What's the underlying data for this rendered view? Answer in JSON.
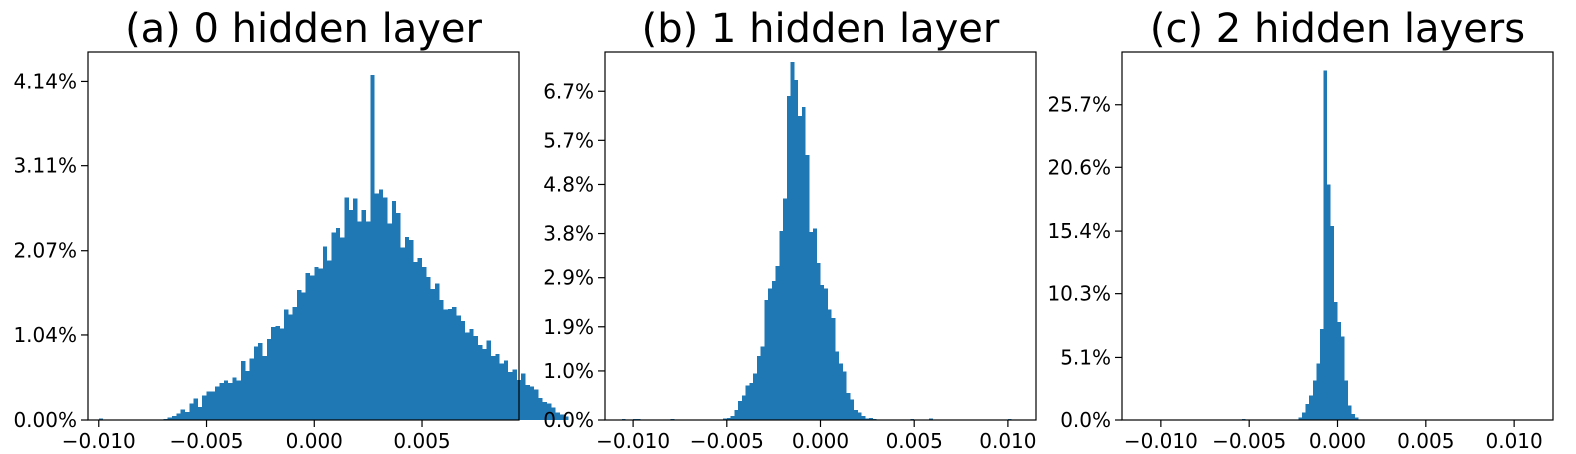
{
  "chart_data": [
    {
      "type": "bar",
      "title": "(a) 0 hidden layer",
      "xlabel": "",
      "ylabel": "",
      "color": "#1f77b4",
      "grid": false,
      "xlim": [
        -0.0105,
        0.0095
      ],
      "ylim": [
        0.0,
        4.5
      ],
      "x_ticks": [
        -0.01,
        -0.005,
        0.0,
        0.005
      ],
      "x_tick_labels": [
        "−0.010",
        "−0.005",
        "0.000",
        "0.005"
      ],
      "y_ticks": [
        0.0,
        1.04,
        2.07,
        3.11,
        4.14
      ],
      "y_tick_labels": [
        "0.00%",
        "1.04%",
        "2.07%",
        "3.11%",
        "4.14%"
      ],
      "bin_width": 0.0002,
      "bin_start": -0.0102,
      "values": [
        0.0,
        0.02,
        0.0,
        0.0,
        0.0,
        0.0,
        0.0,
        0.0,
        0.0,
        0.0,
        0.0,
        0.0,
        0.0,
        0.0,
        0.0,
        0.0,
        0.01,
        0.03,
        0.05,
        0.08,
        0.13,
        0.1,
        0.2,
        0.26,
        0.16,
        0.3,
        0.35,
        0.35,
        0.41,
        0.45,
        0.48,
        0.45,
        0.52,
        0.48,
        0.72,
        0.6,
        0.75,
        0.9,
        0.94,
        0.78,
        0.99,
        1.14,
        1.15,
        1.12,
        1.35,
        1.29,
        1.38,
        1.59,
        1.56,
        1.8,
        1.77,
        1.87,
        1.85,
        2.12,
        1.95,
        2.29,
        2.35,
        2.23,
        2.72,
        2.57,
        2.71,
        2.43,
        2.57,
        2.43,
        4.22,
        2.77,
        2.82,
        2.72,
        2.4,
        2.68,
        2.53,
        2.11,
        2.24,
        2.2,
        1.93,
        1.98,
        1.87,
        1.75,
        1.6,
        1.67,
        1.47,
        1.35,
        1.36,
        1.38,
        1.28,
        1.21,
        1.07,
        1.11,
        1.03,
        0.92,
        0.87,
        0.97,
        0.78,
        0.81,
        0.69,
        0.73,
        0.59,
        0.62,
        0.49,
        0.57,
        0.43,
        0.41,
        0.37,
        0.27,
        0.22,
        0.2,
        0.15,
        0.09,
        0.07,
        0.04,
        0.0
      ]
    },
    {
      "type": "bar",
      "title": "(b) 1 hidden layer",
      "xlabel": "",
      "ylabel": "",
      "color": "#1f77b4",
      "grid": false,
      "xlim": [
        -0.0115,
        0.0115
      ],
      "ylim": [
        0.0,
        7.5
      ],
      "x_ticks": [
        -0.01,
        -0.005,
        0.0,
        0.005,
        0.01
      ],
      "x_tick_labels": [
        "−0.010",
        "−0.005",
        "0.000",
        "0.005",
        "0.010"
      ],
      "y_ticks": [
        0.0,
        1.0,
        1.9,
        2.9,
        3.8,
        4.8,
        5.7,
        6.7
      ],
      "y_tick_labels": [
        "0.0%",
        "1.0%",
        "1.9%",
        "2.9%",
        "3.8%",
        "4.8%",
        "5.7%",
        "6.7%"
      ],
      "bin_width": 0.0002,
      "bin_start": -0.011,
      "values": [
        0.0,
        0.0,
        0.02,
        0.0,
        0.0,
        0.02,
        0.02,
        0.0,
        0.0,
        0.0,
        0.0,
        0.0,
        0.0,
        0.0,
        0.0,
        0.02,
        0.0,
        0.0,
        0.0,
        0.0,
        0.0,
        0.0,
        0.0,
        0.0,
        0.0,
        0.0,
        0.0,
        0.0,
        0.0,
        0.03,
        0.04,
        0.08,
        0.2,
        0.39,
        0.5,
        0.7,
        0.75,
        0.95,
        1.3,
        1.5,
        2.45,
        2.68,
        2.83,
        3.14,
        3.85,
        4.51,
        6.6,
        7.3,
        6.93,
        6.2,
        6.38,
        5.4,
        3.83,
        3.9,
        3.2,
        2.75,
        2.68,
        2.25,
        2.08,
        1.4,
        1.15,
        0.99,
        0.55,
        0.42,
        0.2,
        0.15,
        0.08,
        0.03,
        0.04,
        0.02,
        0.0,
        0.0,
        0.0,
        0.0,
        0.0,
        0.0,
        0.0,
        0.0,
        0.0,
        0.02,
        0.0,
        0.0,
        0.0,
        0.0,
        0.03,
        0.0,
        0.0,
        0.0,
        0.0,
        0.0,
        0.0,
        0.0,
        0.0,
        0.0,
        0.0,
        0.0,
        0.0,
        0.0,
        0.0,
        0.0,
        0.0,
        0.0,
        0.0,
        0.0,
        0.0,
        0.02,
        0.0,
        0.0,
        0.0,
        0.0
      ]
    },
    {
      "type": "bar",
      "title": "(c) 2 hidden layers",
      "xlabel": "",
      "ylabel": "",
      "color": "#1f77b4",
      "grid": false,
      "xlim": [
        -0.0122,
        0.0122
      ],
      "ylim": [
        0.0,
        30.0
      ],
      "x_ticks": [
        -0.01,
        -0.005,
        0.0,
        0.005,
        0.01
      ],
      "x_tick_labels": [
        "−0.010",
        "−0.005",
        "0.000",
        "0.005",
        "0.010"
      ],
      "y_ticks": [
        0.0,
        5.1,
        10.3,
        15.4,
        20.6,
        25.7
      ],
      "y_tick_labels": [
        "0.0%",
        "5.1%",
        "10.3%",
        "15.4%",
        "20.6%",
        "25.7%"
      ],
      "bin_width": 0.0002,
      "bin_start": -0.011,
      "values": [
        0.0,
        0.0,
        0.05,
        0.0,
        0.0,
        0.0,
        0.0,
        0.0,
        0.0,
        0.0,
        0.0,
        0.0,
        0.0,
        0.0,
        0.0,
        0.0,
        0.0,
        0.0,
        0.0,
        0.0,
        0.0,
        0.0,
        0.0,
        0.0,
        0.0,
        0.0,
        0.0,
        0.0,
        0.1,
        0.0,
        0.0,
        0.0,
        0.0,
        0.0,
        0.0,
        0.0,
        0.0,
        0.0,
        0.0,
        0.0,
        0.0,
        0.0,
        0.0,
        0.0,
        0.2,
        0.6,
        1.3,
        2.0,
        3.2,
        4.6,
        7.4,
        28.5,
        19.2,
        15.8,
        9.6,
        8.0,
        6.8,
        3.2,
        1.2,
        0.5,
        0.2,
        0.05,
        0.0,
        0.0,
        0.0,
        0.0,
        0.0,
        0.0,
        0.0,
        0.0,
        0.0,
        0.0,
        0.0,
        0.0,
        0.0,
        0.0,
        0.0,
        0.0,
        0.0,
        0.0,
        0.0,
        0.0,
        0.0,
        0.0,
        0.0,
        0.0,
        0.0,
        0.0,
        0.0,
        0.0,
        0.0,
        0.0,
        0.0,
        0.0,
        0.0,
        0.0,
        0.0,
        0.0,
        0.0,
        0.0,
        0.0,
        0.0,
        0.0,
        0.0,
        0.0,
        0.0,
        0.0,
        0.0,
        0.0,
        0.0,
        0.0
      ]
    }
  ]
}
